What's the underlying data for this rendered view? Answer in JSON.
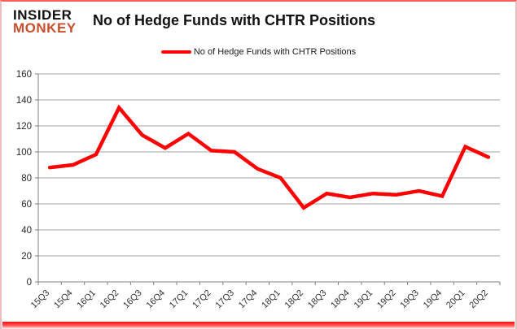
{
  "header": {
    "logo_line1": "INSIDER",
    "logo_line2": "MONKEY",
    "title": "No of Hedge Funds with CHTR Positions"
  },
  "legend": {
    "label": "No of Hedge Funds with CHTR Positions"
  },
  "colors": {
    "line": "#ff0000",
    "gridline": "#a6a6a6",
    "axis": "#808080",
    "tick_label": "#262626",
    "logo_accent": "#c94e2d"
  },
  "chart_data": {
    "type": "line",
    "title": "No of Hedge Funds with CHTR Positions",
    "categories": [
      "15Q3",
      "15Q4",
      "16Q1",
      "16Q2",
      "16Q3",
      "16Q4",
      "17Q1",
      "17Q2",
      "17Q3",
      "17Q4",
      "18Q1",
      "18Q2",
      "18Q3",
      "18Q4",
      "19Q1",
      "19Q2",
      "19Q3",
      "19Q4",
      "20Q1",
      "20Q2"
    ],
    "series": [
      {
        "name": "No of Hedge Funds with CHTR Positions",
        "values": [
          88,
          90,
          98,
          134,
          113,
          103,
          114,
          101,
          100,
          87,
          80,
          57,
          68,
          65,
          68,
          67,
          70,
          66,
          104,
          96
        ]
      }
    ],
    "xlabel": "",
    "ylabel": "",
    "ylim": [
      0,
      160
    ],
    "ytick_step": 20,
    "grid": true,
    "legend_position": "top-center",
    "line_color": "#ff0000"
  }
}
